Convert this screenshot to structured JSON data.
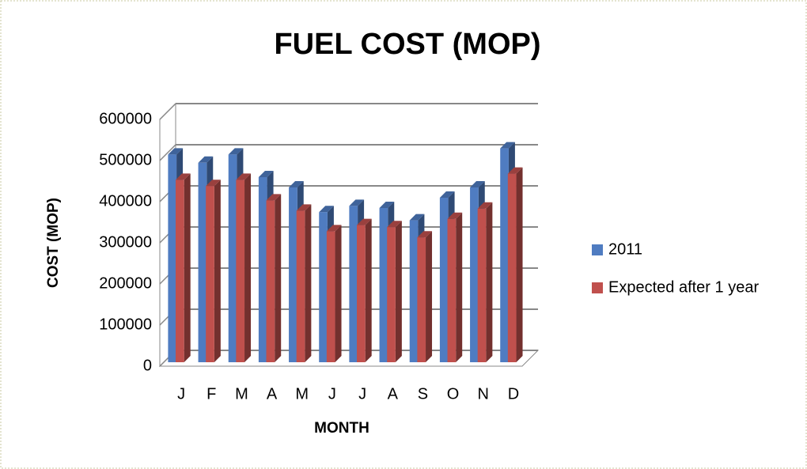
{
  "chart_data": {
    "type": "bar3d",
    "title": "FUEL COST (MOP)",
    "ylabel": "COST (MOP)",
    "xlabel": "MONTH",
    "categories": [
      "J",
      "F",
      "M",
      "A",
      "M",
      "J",
      "J",
      "A",
      "S",
      "O",
      "N",
      "D"
    ],
    "series": [
      {
        "name": "2011",
        "color": "#4f7cc1",
        "values": [
          505000,
          485000,
          505000,
          450000,
          425000,
          365000,
          380000,
          375000,
          345000,
          400000,
          425000,
          520000
        ]
      },
      {
        "name": "Expected after 1 year",
        "color": "#c0504d",
        "values": [
          455000,
          440000,
          455000,
          405000,
          380000,
          330000,
          345000,
          340000,
          315000,
          360000,
          385000,
          470000
        ]
      }
    ],
    "ylim": [
      0,
      600000
    ],
    "yticks": [
      0,
      100000,
      200000,
      300000,
      400000,
      500000,
      600000
    ],
    "grid": true,
    "legend": "right"
  }
}
